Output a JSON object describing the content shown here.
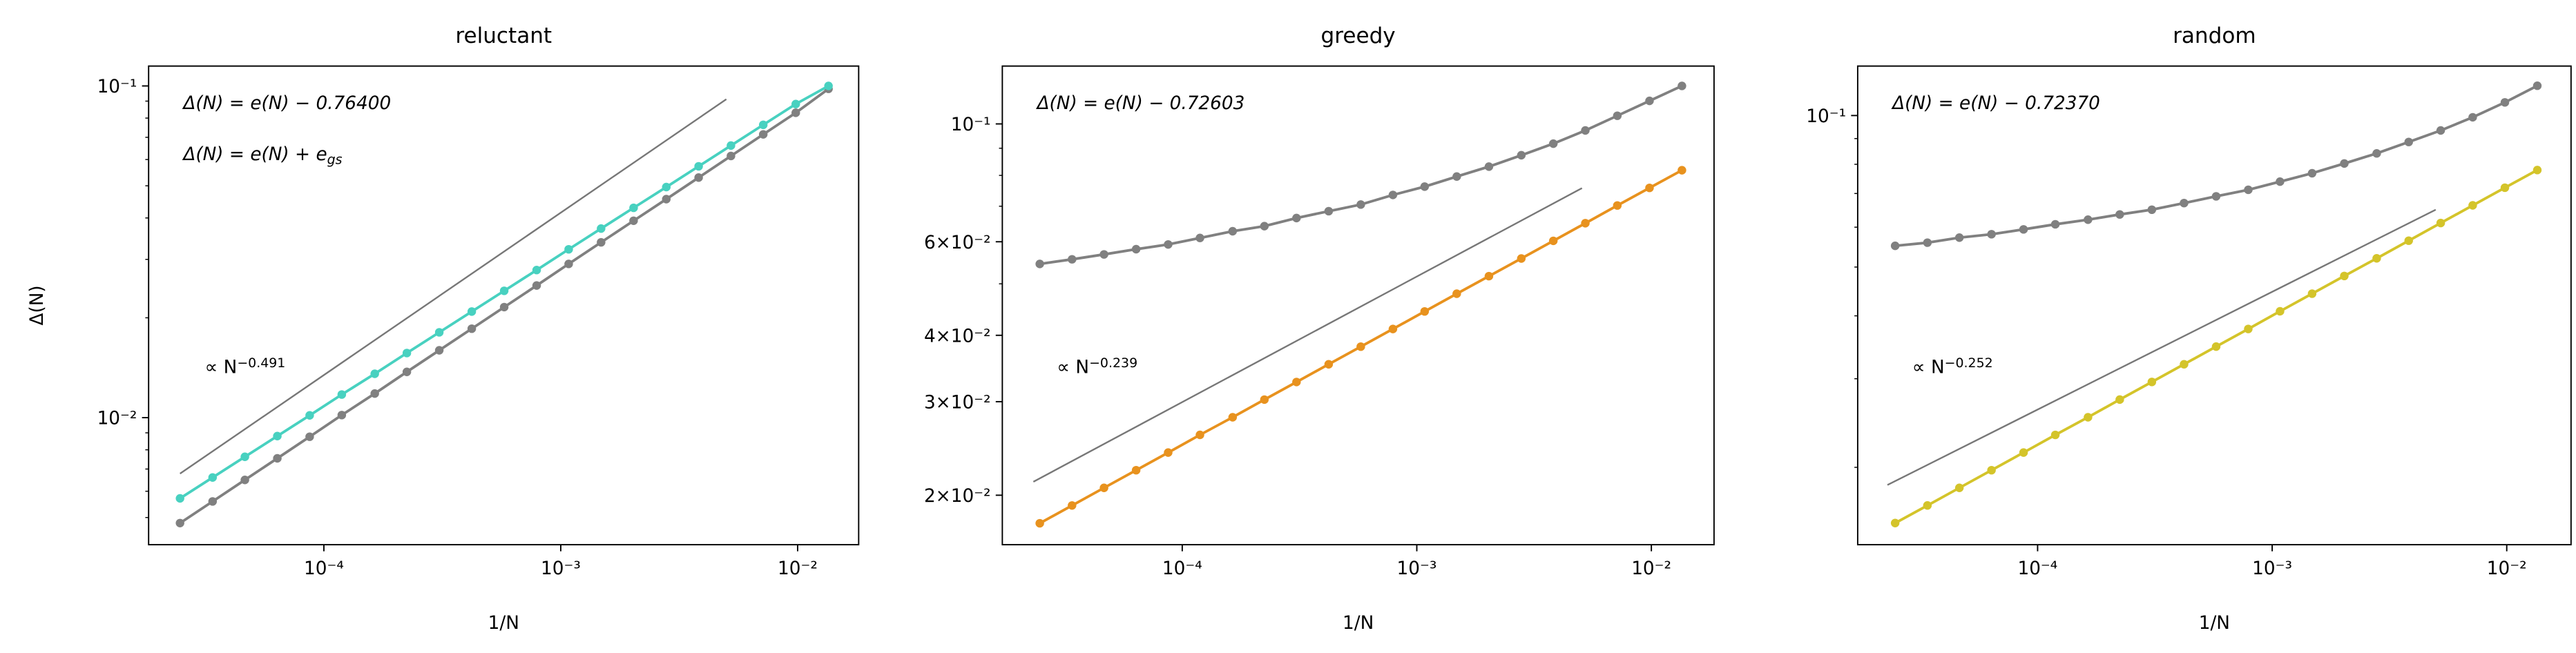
{
  "chart_data": [
    {
      "type": "line",
      "title": "reluctant",
      "xlabel": "1/N",
      "ylabel": "Δ(N)",
      "xscale": "log",
      "yscale": "log",
      "xlim": [
        1.82e-05,
        0.0181
      ],
      "ylim": [
        0.00414,
        0.1148
      ],
      "xticks": [
        {
          "value": 0.0001,
          "label": "10⁻⁴"
        },
        {
          "value": 0.001,
          "label": "10⁻³"
        },
        {
          "value": 0.01,
          "label": "10⁻²"
        }
      ],
      "yticks": [
        {
          "value": 0.01,
          "label": "10⁻²"
        },
        {
          "value": 0.1,
          "label": "10⁻¹"
        }
      ],
      "yminor": [
        0.005,
        0.006,
        0.007,
        0.008,
        0.009,
        0.02,
        0.03,
        0.04,
        0.05,
        0.06,
        0.07,
        0.08,
        0.09
      ],
      "x": [
        2.47e-05,
        3.39e-05,
        4.64e-05,
        6.36e-05,
        8.71e-05,
        0.000119,
        0.000164,
        0.000224,
        0.000307,
        0.000421,
        0.000577,
        0.000791,
        0.00108,
        0.00148,
        0.00203,
        0.00279,
        0.00382,
        0.00523,
        0.00716,
        0.00982,
        0.0135
      ],
      "series": [
        {
          "name": "Δ(N) = e(N) − 0.76400",
          "color": "#48d1c0",
          "values": [
            0.00571,
            0.0066,
            0.00762,
            0.0088,
            0.01016,
            0.01174,
            0.01356,
            0.01566,
            0.01808,
            0.02088,
            0.02412,
            0.02786,
            0.03217,
            0.03716,
            0.04291,
            0.04956,
            0.05724,
            0.06611,
            0.07635,
            0.08818,
            0.1
          ]
        },
        {
          "name": "Δ(N) = e(N) + e_gs",
          "color": "#808080",
          "values": [
            0.00481,
            0.00559,
            0.00649,
            0.00754,
            0.00876,
            0.01018,
            0.01182,
            0.01374,
            0.01596,
            0.01854,
            0.02154,
            0.02502,
            0.02907,
            0.03377,
            0.03923,
            0.04557,
            0.05294,
            0.0615,
            0.07145,
            0.083,
            0.098
          ]
        }
      ],
      "fit": {
        "x": [
          2.47e-05,
          0.005
        ],
        "y": [
          0.00678,
          0.0912
        ],
        "label": "∝ N^−0.491",
        "color": "#777777"
      }
    },
    {
      "type": "line",
      "title": "greedy",
      "xlabel": "1/N",
      "xscale": "log",
      "yscale": "log",
      "xlim": [
        1.71e-05,
        0.0185
      ],
      "ylim": [
        0.01614,
        0.1285
      ],
      "xticks": [
        {
          "value": 0.0001,
          "label": "10⁻⁴"
        },
        {
          "value": 0.001,
          "label": "10⁻³"
        },
        {
          "value": 0.01,
          "label": "10⁻²"
        }
      ],
      "yticks": [
        {
          "value": 0.02,
          "label": "2×10⁻²"
        },
        {
          "value": 0.03,
          "label": "3×10⁻²"
        },
        {
          "value": 0.04,
          "label": "4×10⁻²"
        },
        {
          "value": 0.06,
          "label": "6×10⁻²"
        },
        {
          "value": 0.1,
          "label": "10⁻¹"
        }
      ],
      "yminor": [
        0.05,
        0.07,
        0.08,
        0.09
      ],
      "x": [
        2.47e-05,
        3.39e-05,
        4.64e-05,
        6.36e-05,
        8.71e-05,
        0.000119,
        0.000164,
        0.000224,
        0.000307,
        0.000421,
        0.000577,
        0.000791,
        0.00108,
        0.00148,
        0.00203,
        0.00279,
        0.00382,
        0.00523,
        0.00716,
        0.00982,
        0.0135
      ],
      "series": [
        {
          "name": "Δ(N) = e(N) − 0.72603",
          "color": "#e8921e",
          "values": [
            0.01771,
            0.01913,
            0.02065,
            0.02229,
            0.02406,
            0.02598,
            0.02804,
            0.03027,
            0.03267,
            0.03528,
            0.03808,
            0.04111,
            0.04436,
            0.0479,
            0.05169,
            0.0558,
            0.06024,
            0.06502,
            0.07022,
            0.07578,
            0.08181
          ]
        },
        {
          "color": "#808080",
          "values": [
            0.0545,
            0.0556,
            0.0568,
            0.0581,
            0.0593,
            0.061,
            0.0628,
            0.0642,
            0.0665,
            0.0685,
            0.0705,
            0.0735,
            0.0762,
            0.0796,
            0.0831,
            0.0873,
            0.0918,
            0.0972,
            0.1036,
            0.1105,
            0.1179
          ]
        }
      ],
      "fit": {
        "x": [
          2.32e-05,
          0.00506
        ],
        "y": [
          0.0212,
          0.0757
        ],
        "label": "∝ N^−0.239",
        "color": "#777777"
      }
    },
    {
      "type": "line",
      "title": "random",
      "xlabel": "1/N",
      "xscale": "log",
      "yscale": "log",
      "xlim": [
        1.71e-05,
        0.0188
      ],
      "ylim": [
        0.01404,
        0.1254
      ],
      "xticks": [
        {
          "value": 0.0001,
          "label": "10⁻⁴"
        },
        {
          "value": 0.001,
          "label": "10⁻³"
        },
        {
          "value": 0.01,
          "label": "10⁻²"
        }
      ],
      "yticks": [
        {
          "value": 0.1,
          "label": "10⁻¹"
        }
      ],
      "yminor": [
        0.02,
        0.03,
        0.04,
        0.05,
        0.06,
        0.07,
        0.08,
        0.09
      ],
      "x": [
        2.47e-05,
        3.39e-05,
        4.64e-05,
        6.36e-05,
        8.71e-05,
        0.000119,
        0.000164,
        0.000224,
        0.000307,
        0.000421,
        0.000577,
        0.000791,
        0.00108,
        0.00148,
        0.00203,
        0.00279,
        0.00382,
        0.00523,
        0.00716,
        0.00982,
        0.0135
      ],
      "series": [
        {
          "name": "Δ(N) = e(N) − 0.72370",
          "color": "#d4c42a",
          "values": [
            0.0155,
            0.0168,
            0.01821,
            0.01974,
            0.0214,
            0.0232,
            0.02515,
            0.02727,
            0.02956,
            0.03205,
            0.03475,
            0.03767,
            0.04084,
            0.04427,
            0.048,
            0.05203,
            0.05641,
            0.06116,
            0.0663,
            0.07188,
            0.07793
          ]
        },
        {
          "color": "#808080",
          "values": [
            0.0551,
            0.0559,
            0.0572,
            0.0581,
            0.0594,
            0.0608,
            0.0621,
            0.0636,
            0.065,
            0.067,
            0.0691,
            0.0712,
            0.0739,
            0.0768,
            0.0803,
            0.0841,
            0.0886,
            0.0934,
            0.0992,
            0.1062,
            0.1146
          ]
        }
      ],
      "fit": {
        "x": [
          2.29e-05,
          0.00498
        ],
        "y": [
          0.01845,
          0.065
        ],
        "label": "∝ N^−0.252",
        "color": "#777777"
      }
    }
  ]
}
